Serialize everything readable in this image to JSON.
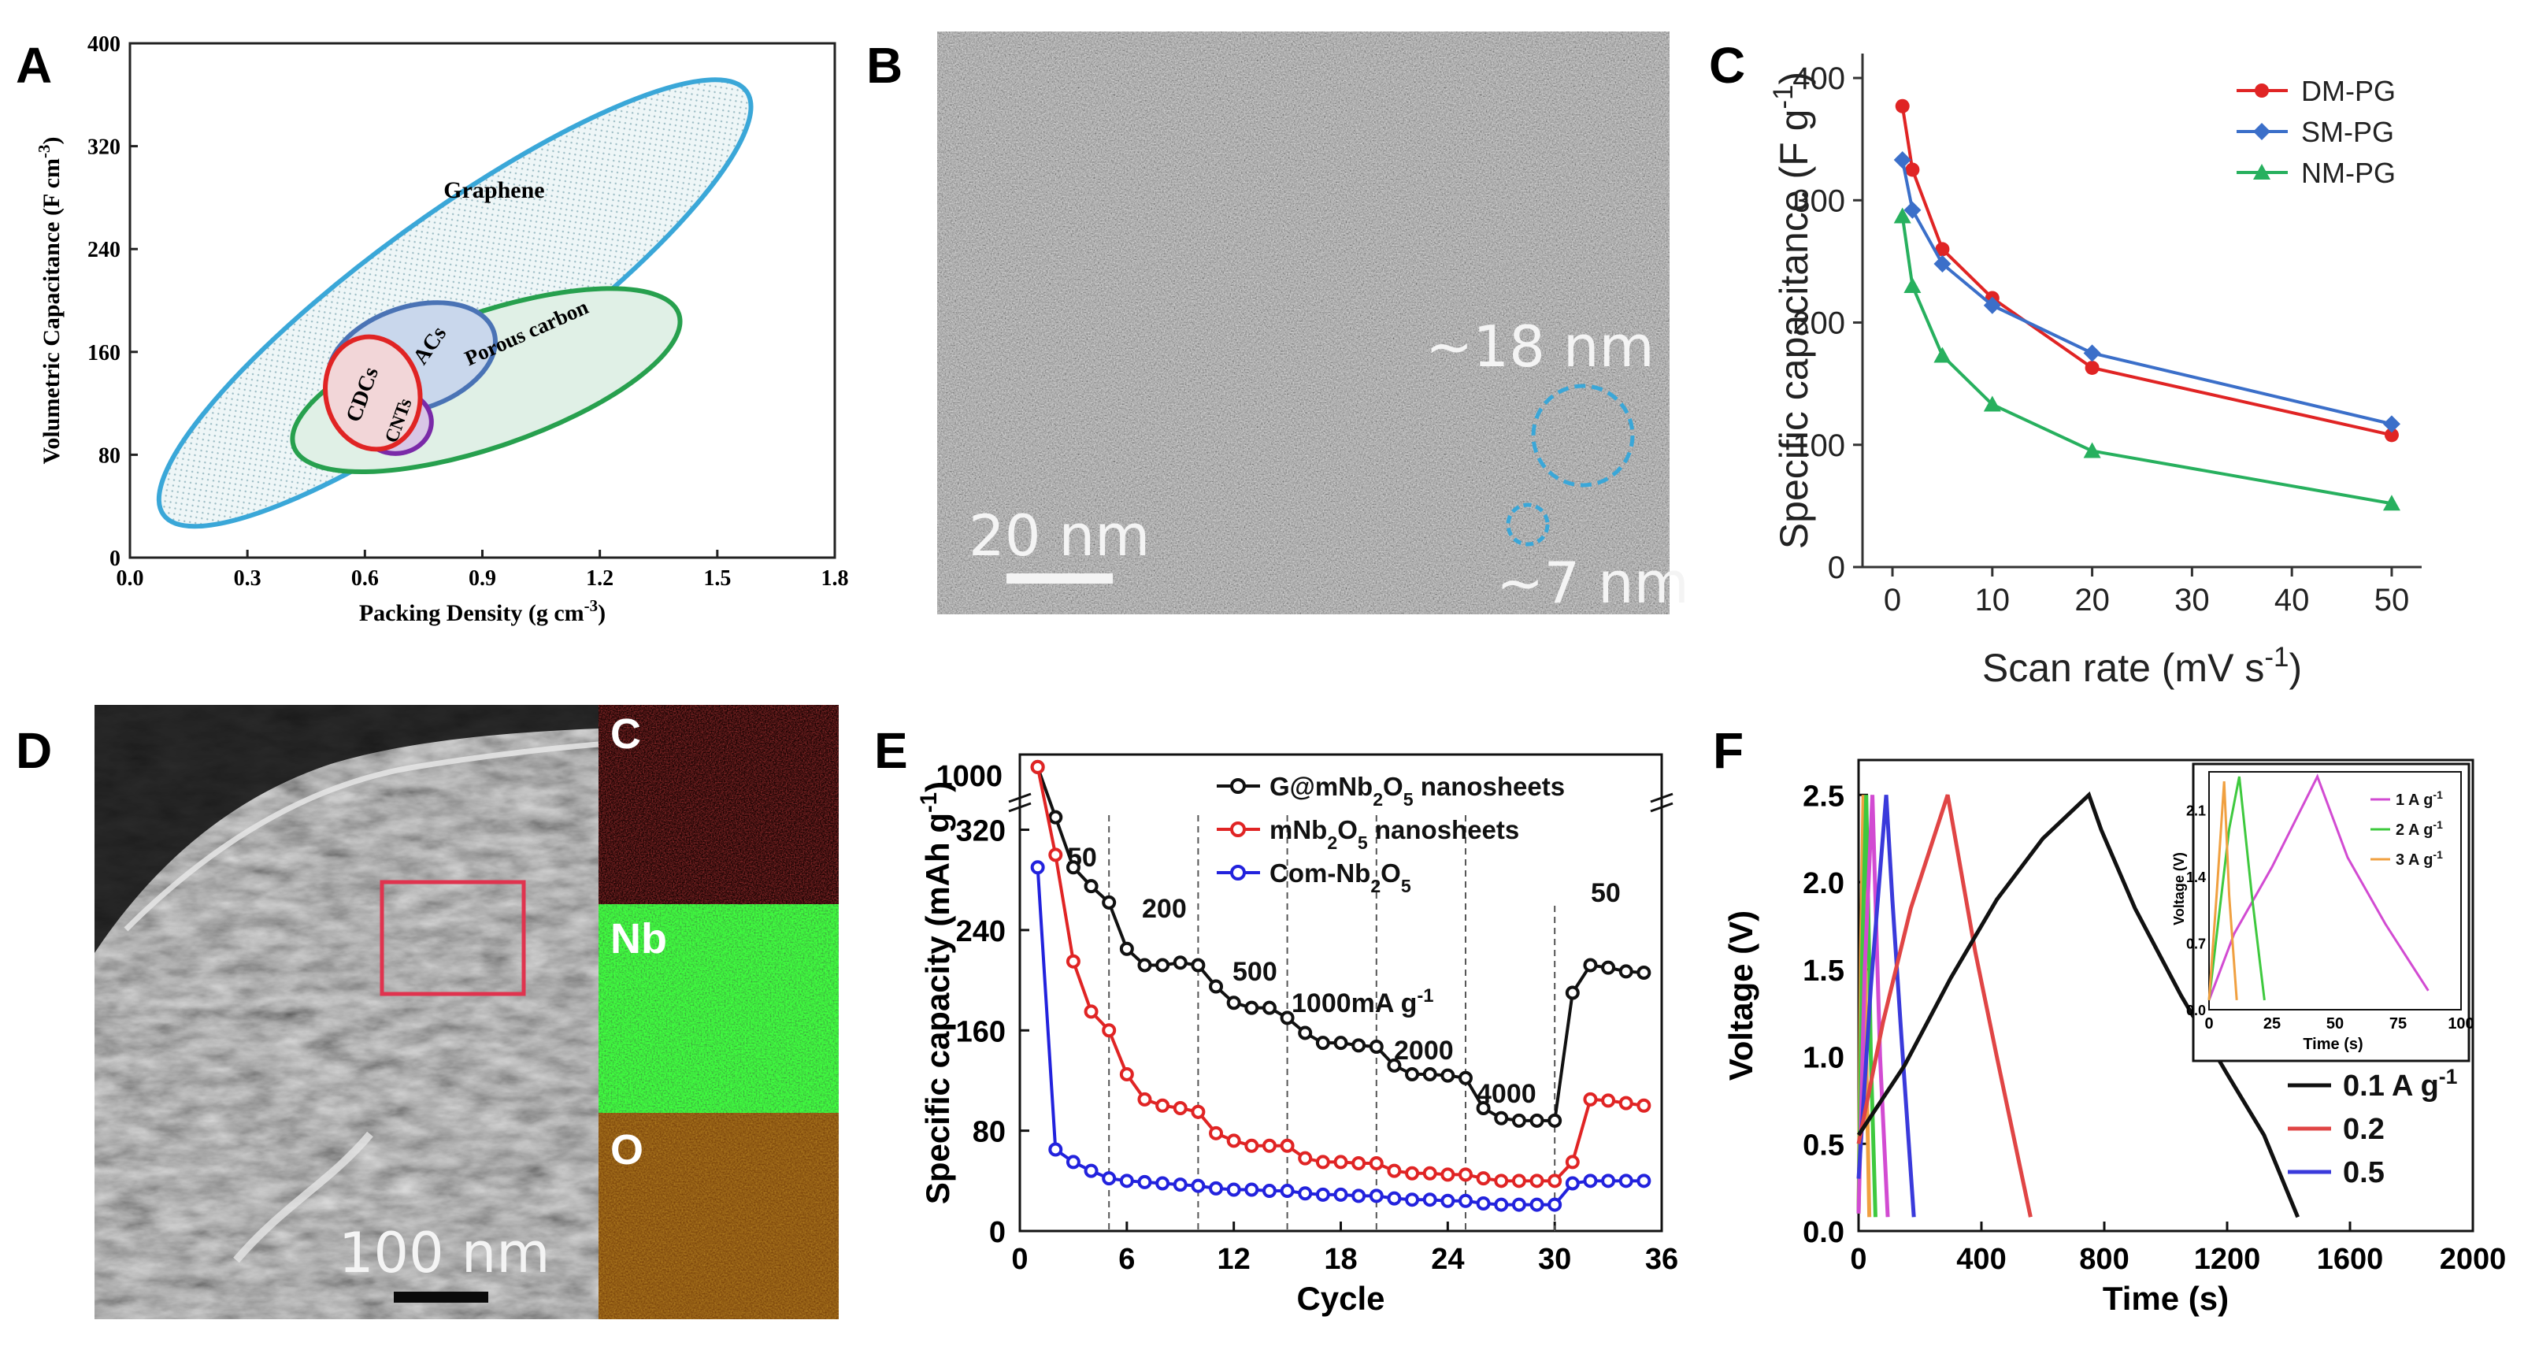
{
  "panels": {
    "A": {
      "letter": "A"
    },
    "B": {
      "letter": "B"
    },
    "C": {
      "letter": "C"
    },
    "D": {
      "letter": "D"
    },
    "E": {
      "letter": "E"
    },
    "F": {
      "letter": "F"
    }
  },
  "colors": {
    "red": "#e02424",
    "blue": "#3b6fc9",
    "green": "#27b05e",
    "black": "#111111",
    "cyan": "#3aa7d8",
    "purple": "#7a2aa8",
    "magenta": "#d24bd2",
    "orange": "#f0a040",
    "lime": "#3ec93e"
  },
  "panel_b": {
    "scale_label": "20 nm",
    "size_large": "~18 nm",
    "size_small": "~7 nm"
  },
  "panel_d": {
    "scale_label": "100 nm",
    "map_c": "C",
    "map_nb": "Nb",
    "map_o": "O"
  },
  "chart_data": [
    {
      "id": "A",
      "type": "scatter",
      "title": "",
      "xlabel": "Packing Density (g cm^-3)",
      "ylabel": "Volumetric Capacitance (F cm^-3)",
      "xlim": [
        0.0,
        1.8
      ],
      "ylim": [
        0,
        400
      ],
      "xticks": [
        "0.0",
        "0.3",
        "0.6",
        "0.9",
        "1.2",
        "1.5",
        "1.8"
      ],
      "yticks": [
        "0",
        "80",
        "160",
        "240",
        "320",
        "400"
      ],
      "regions": [
        {
          "name": "Graphene",
          "color": "#3aa7d8",
          "fill": "#e7f3f5",
          "cx": 0.83,
          "cy": 198,
          "rx": 0.92,
          "ry": 68,
          "angle": -36
        },
        {
          "name": "Porous carbon",
          "color": "#27a04e",
          "fill": "#e0f0e6",
          "cx": 0.91,
          "cy": 138,
          "rx": 0.52,
          "ry": 52,
          "angle": -19
        },
        {
          "name": "ACs",
          "color": "#4a73b5",
          "fill": "#c9d7ec",
          "cx": 0.72,
          "cy": 155,
          "rx": 0.22,
          "ry": 40,
          "angle": -18
        },
        {
          "name": "CNTs",
          "color": "#7a2aa8",
          "fill": "#d8c6e6",
          "cx": 0.68,
          "cy": 105,
          "rx": 0.09,
          "ry": 24,
          "angle": -5
        },
        {
          "name": "CDCs",
          "color": "#e02424",
          "fill": "#f2d6d8",
          "cx": 0.62,
          "cy": 128,
          "rx": 0.12,
          "ry": 44,
          "angle": -12
        }
      ],
      "labels": {
        "graphene": "Graphene",
        "porous": "Porous carbon",
        "acs": "ACs",
        "cdcs": "CDCs",
        "cnts": "CNTs"
      }
    },
    {
      "id": "C",
      "type": "line",
      "title": "",
      "xlabel": "Scan rate (mV s^-1)",
      "ylabel": "Specific capacitance (F g^-1)",
      "xlim": [
        -3,
        53
      ],
      "ylim": [
        0,
        420
      ],
      "xticks": [
        "0",
        "10",
        "20",
        "30",
        "40",
        "50"
      ],
      "yticks": [
        "0",
        "100",
        "200",
        "300",
        "400"
      ],
      "legend_position": "top-right",
      "x": [
        1,
        2,
        5,
        10,
        20,
        50
      ],
      "series": [
        {
          "name": "DM-PG",
          "color": "#e02424",
          "marker": "circle",
          "values": [
            377,
            325,
            260,
            220,
            163,
            108
          ]
        },
        {
          "name": "SM-PG",
          "color": "#3b6fc9",
          "marker": "diamond",
          "values": [
            333,
            292,
            248,
            214,
            175,
            117
          ]
        },
        {
          "name": "NM-PG",
          "color": "#27b05e",
          "marker": "triangle",
          "values": [
            287,
            230,
            173,
            133,
            95,
            52
          ]
        }
      ]
    },
    {
      "id": "E",
      "type": "line",
      "title": "",
      "xlabel": "Cycle",
      "ylabel": "Specific capacity (mAh g^-1)",
      "xlim": [
        0,
        36
      ],
      "ylim": [
        0,
        380
      ],
      "xticks": [
        "0",
        "6",
        "12",
        "18",
        "24",
        "30",
        "36"
      ],
      "yticks": [
        "0",
        "80",
        "160",
        "240",
        "320"
      ],
      "ybreak_label": "1000",
      "legend_position": "top-right",
      "rate_segments": [
        "50",
        "200",
        "500",
        "1000mA g^-1",
        "2000",
        "4000",
        "50"
      ],
      "rate_dividers": [
        5,
        10,
        15,
        20,
        25,
        30
      ],
      "x": [
        1,
        2,
        3,
        4,
        5,
        6,
        7,
        8,
        9,
        10,
        11,
        12,
        13,
        14,
        15,
        16,
        17,
        18,
        19,
        20,
        21,
        22,
        23,
        24,
        25,
        26,
        27,
        28,
        29,
        30,
        31,
        32,
        33,
        34,
        35
      ],
      "series": [
        {
          "name": "G@mNb2O5 nanosheets",
          "color": "#111111",
          "values": [
            370,
            330,
            290,
            275,
            262,
            225,
            212,
            212,
            214,
            212,
            195,
            182,
            178,
            178,
            170,
            158,
            150,
            150,
            148,
            147,
            132,
            125,
            125,
            124,
            122,
            98,
            90,
            88,
            88,
            88,
            190,
            212,
            210,
            207,
            206
          ]
        },
        {
          "name": "mNb2O5 nanosheets",
          "color": "#e02424",
          "values": [
            370,
            300,
            215,
            175,
            160,
            125,
            105,
            100,
            98,
            95,
            78,
            72,
            68,
            68,
            68,
            58,
            55,
            55,
            54,
            54,
            48,
            46,
            46,
            45,
            45,
            42,
            40,
            40,
            40,
            40,
            55,
            105,
            104,
            102,
            100
          ]
        },
        {
          "name": "Com-Nb2O5",
          "color": "#2222dd",
          "values": [
            290,
            65,
            55,
            48,
            42,
            40,
            39,
            38,
            37,
            36,
            34,
            33,
            33,
            32,
            32,
            30,
            29,
            29,
            28,
            28,
            26,
            25,
            25,
            24,
            24,
            22,
            21,
            21,
            21,
            21,
            38,
            40,
            40,
            40,
            40
          ]
        }
      ]
    },
    {
      "id": "F",
      "type": "line",
      "title": "",
      "xlabel": "Time (s)",
      "ylabel": "Voltage (V)",
      "xlim": [
        0,
        2000
      ],
      "ylim": [
        0,
        2.7
      ],
      "xticks": [
        "0",
        "400",
        "800",
        "1200",
        "1600",
        "2000"
      ],
      "yticks": [
        "0.0",
        "0.5",
        "1.0",
        "1.5",
        "2.0",
        "2.5"
      ],
      "legend_position": "bottom-right",
      "series": [
        {
          "name": "0.1 A g^-1",
          "color": "#111111",
          "charge": [
            [
              0,
              0.55
            ],
            [
              150,
              0.95
            ],
            [
              300,
              1.45
            ],
            [
              450,
              1.9
            ],
            [
              600,
              2.25
            ],
            [
              750,
              2.5
            ]
          ],
          "discharge": [
            [
              750,
              2.5
            ],
            [
              790,
              2.3
            ],
            [
              900,
              1.85
            ],
            [
              1050,
              1.35
            ],
            [
              1200,
              0.9
            ],
            [
              1320,
              0.55
            ],
            [
              1430,
              0.08
            ]
          ]
        },
        {
          "name": "0.2",
          "color": "#e04545",
          "charge": [
            [
              0,
              0.5
            ],
            [
              80,
              1.2
            ],
            [
              170,
              1.85
            ],
            [
              290,
              2.5
            ]
          ],
          "discharge": [
            [
              290,
              2.5
            ],
            [
              320,
              2.2
            ],
            [
              380,
              1.6
            ],
            [
              450,
              1.0
            ],
            [
              560,
              0.08
            ]
          ]
        },
        {
          "name": "0.5",
          "color": "#3a3adb",
          "charge": [
            [
              0,
              0.3
            ],
            [
              40,
              1.4
            ],
            [
              90,
              2.5
            ]
          ],
          "discharge": [
            [
              90,
              2.5
            ],
            [
              110,
              1.9
            ],
            [
              140,
              1.1
            ],
            [
              180,
              0.08
            ]
          ]
        },
        {
          "name": "",
          "color": "#d24bd2",
          "charge": [
            [
              0,
              0.1
            ],
            [
              20,
              1.5
            ],
            [
              45,
              2.5
            ]
          ],
          "discharge": [
            [
              45,
              2.5
            ],
            [
              70,
              1.0
            ],
            [
              95,
              0.08
            ]
          ]
        },
        {
          "name": "",
          "color": "#3ec93e",
          "charge": [
            [
              0,
              0.1
            ],
            [
              12,
              1.6
            ],
            [
              25,
              2.5
            ]
          ],
          "discharge": [
            [
              25,
              2.5
            ],
            [
              40,
              1.0
            ],
            [
              55,
              0.08
            ]
          ]
        },
        {
          "name": "",
          "color": "#f0a040",
          "charge": [
            [
              0,
              0.1
            ],
            [
              8,
              1.6
            ],
            [
              16,
              2.5
            ]
          ],
          "discharge": [
            [
              16,
              2.5
            ],
            [
              25,
              1.0
            ],
            [
              35,
              0.08
            ]
          ]
        }
      ],
      "inset": {
        "xlabel": "Time (s)",
        "ylabel": "Voltage (V)",
        "xlim": [
          0,
          100
        ],
        "ylim": [
          0,
          2.5
        ],
        "xticks": [
          "0",
          "25",
          "50",
          "75",
          "100"
        ],
        "yticks": [
          "0.0",
          "0.7",
          "1.4",
          "2.1"
        ],
        "series": [
          {
            "name": "1 A g^-1",
            "color": "#d24bd2",
            "points": [
              [
                0,
                0.1
              ],
              [
                10,
                0.8
              ],
              [
                25,
                1.5
              ],
              [
                43,
                2.45
              ],
              [
                55,
                1.6
              ],
              [
                70,
                0.9
              ],
              [
                87,
                0.2
              ]
            ]
          },
          {
            "name": "2 A g^-1",
            "color": "#3ec93e",
            "points": [
              [
                0,
                0.1
              ],
              [
                4,
                1.0
              ],
              [
                8,
                1.9
              ],
              [
                12,
                2.45
              ],
              [
                17,
                1.2
              ],
              [
                22,
                0.1
              ]
            ]
          },
          {
            "name": "3 A g^-1",
            "color": "#f0a040",
            "points": [
              [
                0,
                0.1
              ],
              [
                3,
                1.2
              ],
              [
                6,
                2.4
              ],
              [
                8,
                1.2
              ],
              [
                11,
                0.1
              ]
            ]
          }
        ]
      }
    }
  ]
}
